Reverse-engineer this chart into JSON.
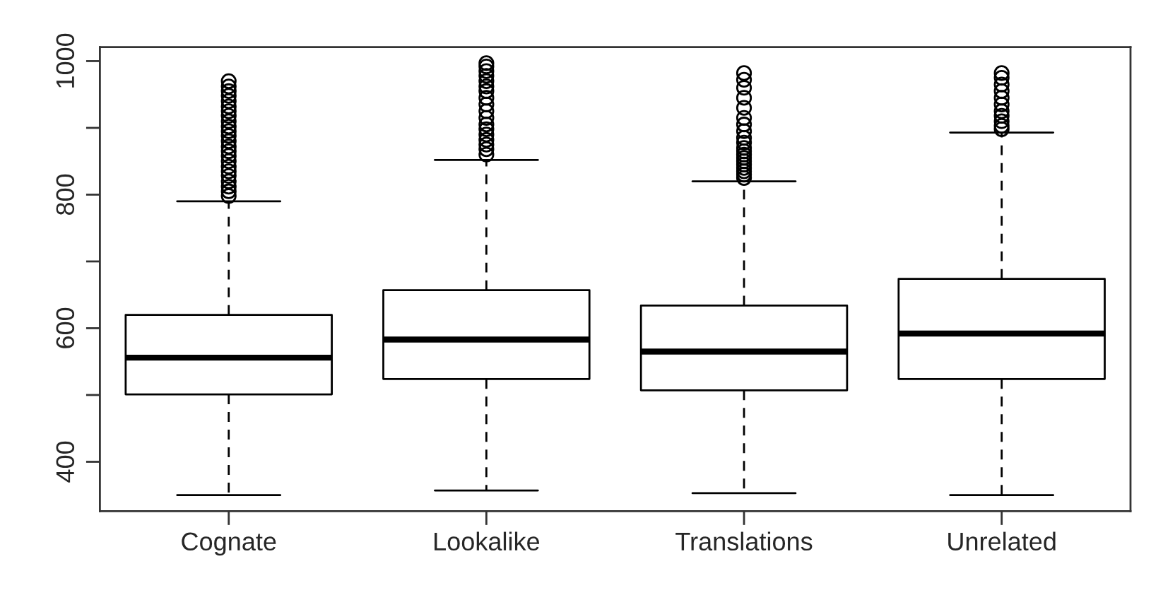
{
  "chart_data": {
    "type": "box",
    "categories": [
      "Cognate",
      "Lookalike",
      "Translations",
      "Unrelated"
    ],
    "boxes": [
      {
        "low": 350,
        "q1": 501,
        "median": 556,
        "q3": 620,
        "high": 790,
        "outliers": [
          798,
          805,
          812,
          820,
          828,
          835,
          842,
          850,
          858,
          865,
          872,
          880,
          888,
          895,
          902,
          910,
          918,
          925,
          932,
          940,
          948,
          955,
          962,
          970
        ]
      },
      {
        "low": 357,
        "q1": 524,
        "median": 583,
        "q3": 657,
        "high": 852,
        "outliers": [
          860,
          868,
          875,
          882,
          890,
          898,
          905,
          915,
          925,
          935,
          945,
          955,
          962,
          970,
          978,
          985,
          992,
          997
        ]
      },
      {
        "low": 353,
        "q1": 507,
        "median": 565,
        "q3": 634,
        "high": 820,
        "outliers": [
          825,
          830,
          835,
          840,
          845,
          850,
          855,
          860,
          865,
          870,
          878,
          885,
          895,
          905,
          915,
          930,
          945,
          960,
          972,
          982
        ]
      },
      {
        "low": 350,
        "q1": 524,
        "median": 592,
        "q3": 674,
        "high": 893,
        "outliers": [
          898,
          903,
          910,
          918,
          925,
          935,
          945,
          955,
          965,
          975,
          982
        ]
      }
    ],
    "ylim": [
      326,
      1021
    ],
    "yticks": [
      400,
      {
        "value": 500,
        "label": null
      },
      600,
      {
        "value": 700,
        "label": null
      },
      800,
      {
        "value": 900,
        "label": null
      },
      1000
    ],
    "grid": false
  }
}
